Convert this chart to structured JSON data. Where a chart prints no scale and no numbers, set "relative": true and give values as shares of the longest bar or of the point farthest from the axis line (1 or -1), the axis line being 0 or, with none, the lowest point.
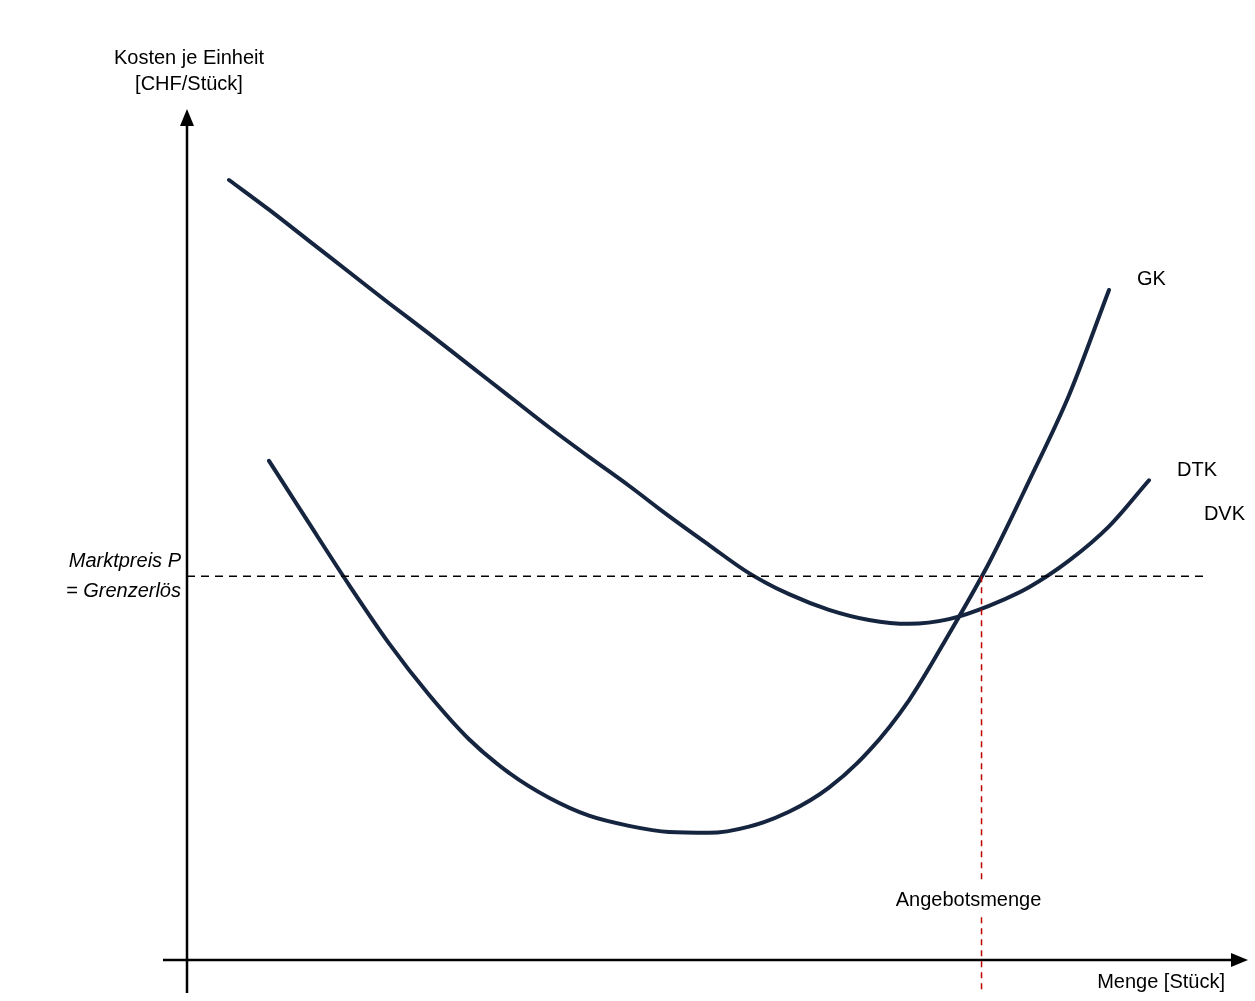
{
  "chart_data": {
    "type": "line",
    "relative": true,
    "legend": false,
    "marker": "none",
    "line_style": "solid",
    "ylabel": "Kosten je Einheit\n[CHF/Stück]",
    "xlabel": "Menge [Stück]",
    "categories": [
      null,
      null,
      null,
      null,
      null,
      null,
      null,
      null,
      null,
      null,
      null,
      null,
      null,
      null,
      null,
      null,
      null,
      null,
      null,
      null,
      null,
      null,
      null,
      null
    ],
    "series": [
      {
        "name": "GK",
        "color": "#16253f",
        "values": [
          null,
          0.64,
          0.56,
          0.481,
          0.406,
          0.34,
          0.283,
          0.24,
          0.208,
          0.185,
          0.172,
          0.164,
          0.163,
          0.171,
          0.19,
          0.221,
          0.268,
          0.333,
          0.418,
          0.509,
          0.614,
          0.724,
          0.859,
          null
        ]
      },
      {
        "name": "DTK",
        "color": "#16253f",
        "values": [
          1.0,
          0.962,
          0.922,
          0.882,
          0.842,
          0.803,
          0.763,
          0.723,
          0.683,
          0.645,
          0.608,
          0.569,
          0.532,
          0.496,
          0.469,
          0.449,
          0.436,
          0.431,
          0.437,
          0.454,
          0.478,
          0.512,
          0.556,
          0.615
        ]
      }
    ],
    "ref_lines": [
      {
        "axis": "y",
        "value": 0.492,
        "label": "Marktpreis P\n= Grenzerlös",
        "color": "#000000",
        "line_style": "dashed"
      }
    ],
    "annotations": [
      "DVK",
      "Angebotsmenge"
    ]
  }
}
